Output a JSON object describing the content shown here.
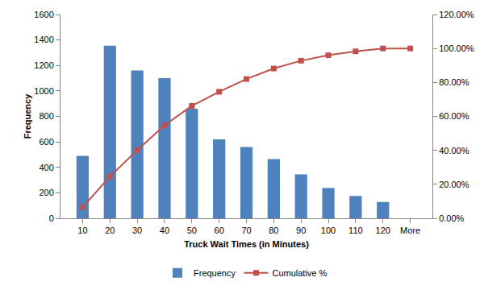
{
  "chart_data": {
    "type": "bar",
    "x_label": "Truck Wait Times (in Minutes)",
    "y_label": "Frequency",
    "categories": [
      "10",
      "20",
      "30",
      "40",
      "50",
      "60",
      "70",
      "80",
      "90",
      "100",
      "110",
      "120",
      "More"
    ],
    "ylim": [
      0,
      1600
    ],
    "yticks": [
      0,
      200,
      400,
      600,
      800,
      1000,
      1200,
      1400,
      1600
    ],
    "y2lim": [
      0,
      120
    ],
    "y2ticks": [
      {
        "value": 0,
        "label": "0.00%"
      },
      {
        "value": 20,
        "label": "20.00%"
      },
      {
        "value": 40,
        "label": "40.00%"
      },
      {
        "value": 60,
        "label": "60.00%"
      },
      {
        "value": 80,
        "label": "80.00%"
      },
      {
        "value": 100,
        "label": "100.00%"
      },
      {
        "value": 120,
        "label": "120.00%"
      }
    ],
    "grid": false,
    "legend": "bottom",
    "series": [
      {
        "name": "Frequency",
        "type": "bar",
        "color": "#4F81BD",
        "values": [
          490,
          1355,
          1160,
          1100,
          860,
          620,
          560,
          465,
          345,
          238,
          175,
          128,
          0
        ]
      },
      {
        "name": "Cumulative %",
        "type": "line",
        "axis": "y2",
        "color": "#C0504D",
        "marker": "square",
        "values": [
          6.5,
          24.6,
          40.1,
          54.8,
          66.2,
          74.5,
          82.0,
          88.2,
          92.8,
          96.0,
          98.3,
          100,
          100
        ]
      }
    ]
  }
}
